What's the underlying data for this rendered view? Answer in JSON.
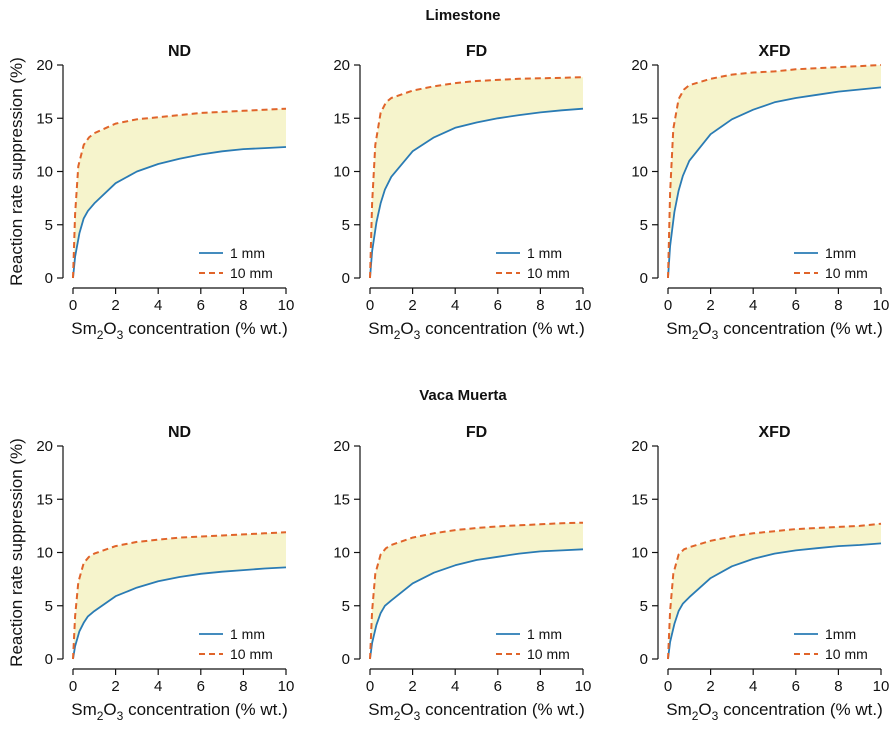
{
  "figure": {
    "group_titles": [
      "Limestone",
      "Vaca Muerta"
    ],
    "ylabel": "Reaction rate suppression (%)",
    "xlabel_main": "Sm",
    "xlabel_sub1": "2",
    "xlabel_mid": "O",
    "xlabel_sub2": "3",
    "xlabel_rest": " concentration (% wt.)"
  },
  "colors": {
    "series_1mm": "#2a7bb4",
    "series_10mm": "#e0642a",
    "fill": "#f6f4cc"
  },
  "chart_data": [
    {
      "type": "line",
      "group": "Limestone",
      "title": "ND",
      "xlim": [
        0,
        10
      ],
      "ylim": [
        0,
        20
      ],
      "xticks": [
        0,
        2,
        4,
        6,
        8,
        10
      ],
      "yticks": [
        0,
        5,
        10,
        15,
        20
      ],
      "legend_placement": "bottom-right",
      "series": [
        {
          "name": "1 mm",
          "style": "solid",
          "x": [
            0,
            0.1,
            0.3,
            0.5,
            0.7,
            1,
            2,
            3,
            4,
            5,
            6,
            7,
            8,
            9,
            10
          ],
          "y": [
            0,
            2,
            4.2,
            5.6,
            6.3,
            7,
            8.9,
            10,
            10.7,
            11.2,
            11.6,
            11.9,
            12.1,
            12.2,
            12.3
          ]
        },
        {
          "name": "10 mm",
          "style": "dashed",
          "x": [
            0,
            0.1,
            0.25,
            0.5,
            0.75,
            1,
            2,
            3,
            4,
            5,
            6,
            7,
            8,
            9,
            10
          ],
          "y": [
            0,
            6,
            10.5,
            12.5,
            13.2,
            13.6,
            14.5,
            14.9,
            15.1,
            15.3,
            15.5,
            15.6,
            15.7,
            15.8,
            15.9
          ]
        }
      ]
    },
    {
      "type": "line",
      "group": "Limestone",
      "title": "FD",
      "xlim": [
        0,
        10
      ],
      "ylim": [
        0,
        20
      ],
      "xticks": [
        0,
        2,
        4,
        6,
        8,
        10
      ],
      "yticks": [
        0,
        5,
        10,
        15,
        20
      ],
      "legend_placement": "bottom-right",
      "series": [
        {
          "name": "1 mm",
          "style": "solid",
          "x": [
            0,
            0.1,
            0.3,
            0.5,
            0.7,
            1,
            2,
            3,
            4,
            5,
            6,
            7,
            8,
            9,
            10
          ],
          "y": [
            0,
            2.5,
            5.2,
            7,
            8.3,
            9.5,
            11.9,
            13.2,
            14.1,
            14.6,
            15,
            15.3,
            15.55,
            15.75,
            15.9
          ]
        },
        {
          "name": "10 mm",
          "style": "dashed",
          "x": [
            0,
            0.1,
            0.25,
            0.5,
            0.75,
            1,
            2,
            3,
            4,
            5,
            6,
            7,
            8,
            9,
            10
          ],
          "y": [
            0,
            7,
            12.5,
            15.5,
            16.5,
            16.9,
            17.6,
            18,
            18.3,
            18.5,
            18.6,
            18.7,
            18.75,
            18.8,
            18.85
          ]
        }
      ]
    },
    {
      "type": "line",
      "group": "Limestone",
      "title": "XFD",
      "xlim": [
        0,
        10
      ],
      "ylim": [
        0,
        20
      ],
      "xticks": [
        0,
        2,
        4,
        6,
        8,
        10
      ],
      "yticks": [
        0,
        5,
        10,
        15,
        20
      ],
      "legend_placement": "bottom-right",
      "series": [
        {
          "name": "1mm",
          "style": "solid",
          "x": [
            0,
            0.1,
            0.3,
            0.5,
            0.7,
            1,
            2,
            3,
            4,
            5,
            6,
            7,
            8,
            9,
            10
          ],
          "y": [
            0,
            3,
            6.2,
            8.2,
            9.6,
            11,
            13.5,
            14.9,
            15.8,
            16.5,
            16.9,
            17.2,
            17.5,
            17.7,
            17.9
          ]
        },
        {
          "name": "10 mm",
          "style": "dashed",
          "x": [
            0,
            0.1,
            0.25,
            0.5,
            0.75,
            1,
            2,
            3,
            4,
            5,
            6,
            7,
            8,
            9,
            10
          ],
          "y": [
            0,
            8,
            14,
            16.8,
            17.7,
            18.1,
            18.7,
            19.1,
            19.3,
            19.4,
            19.6,
            19.7,
            19.8,
            19.9,
            20
          ]
        }
      ]
    },
    {
      "type": "line",
      "group": "Vaca Muerta",
      "title": "ND",
      "xlim": [
        0,
        10
      ],
      "ylim": [
        0,
        20
      ],
      "xticks": [
        0,
        2,
        4,
        6,
        8,
        10
      ],
      "yticks": [
        0,
        5,
        10,
        15,
        20
      ],
      "legend_placement": "bottom-right",
      "series": [
        {
          "name": "1 mm",
          "style": "solid",
          "x": [
            0,
            0.1,
            0.3,
            0.5,
            0.7,
            1,
            2,
            3,
            4,
            5,
            6,
            7,
            8,
            9,
            10
          ],
          "y": [
            0,
            1.2,
            2.6,
            3.4,
            4,
            4.5,
            5.9,
            6.7,
            7.3,
            7.7,
            8,
            8.2,
            8.35,
            8.5,
            8.6
          ]
        },
        {
          "name": "10 mm",
          "style": "dashed",
          "x": [
            0,
            0.1,
            0.25,
            0.5,
            0.75,
            1,
            2,
            3,
            4,
            5,
            6,
            7,
            8,
            9,
            10
          ],
          "y": [
            0,
            4,
            7.2,
            9,
            9.6,
            9.9,
            10.6,
            11,
            11.2,
            11.4,
            11.5,
            11.6,
            11.7,
            11.8,
            11.9
          ]
        }
      ]
    },
    {
      "type": "line",
      "group": "Vaca Muerta",
      "title": "FD",
      "xlim": [
        0,
        10
      ],
      "ylim": [
        0,
        20
      ],
      "xticks": [
        0,
        2,
        4,
        6,
        8,
        10
      ],
      "yticks": [
        0,
        5,
        10,
        15,
        20
      ],
      "legend_placement": "bottom-right",
      "series": [
        {
          "name": "1 mm",
          "style": "solid",
          "x": [
            0,
            0.1,
            0.3,
            0.5,
            0.7,
            1,
            2,
            3,
            4,
            5,
            6,
            7,
            8,
            9,
            10
          ],
          "y": [
            0,
            1.5,
            3.2,
            4.3,
            5,
            5.5,
            7.1,
            8.1,
            8.8,
            9.3,
            9.6,
            9.9,
            10.1,
            10.2,
            10.3
          ]
        },
        {
          "name": "10 mm",
          "style": "dashed",
          "x": [
            0,
            0.1,
            0.25,
            0.5,
            0.75,
            1,
            2,
            3,
            4,
            5,
            6,
            7,
            8,
            9,
            10
          ],
          "y": [
            0,
            4.5,
            8,
            9.8,
            10.4,
            10.7,
            11.4,
            11.8,
            12.1,
            12.3,
            12.45,
            12.55,
            12.65,
            12.75,
            12.8
          ]
        }
      ]
    },
    {
      "type": "line",
      "group": "Vaca Muerta",
      "title": "XFD",
      "xlim": [
        0,
        10
      ],
      "ylim": [
        0,
        20
      ],
      "xticks": [
        0,
        2,
        4,
        6,
        8,
        10
      ],
      "yticks": [
        0,
        5,
        10,
        15,
        20
      ],
      "legend_placement": "bottom-right",
      "series": [
        {
          "name": "1mm",
          "style": "solid",
          "x": [
            0,
            0.1,
            0.3,
            0.5,
            0.7,
            1,
            2,
            3,
            4,
            5,
            6,
            7,
            8,
            9,
            10
          ],
          "y": [
            0,
            1.6,
            3.3,
            4.5,
            5.2,
            5.8,
            7.6,
            8.7,
            9.4,
            9.9,
            10.2,
            10.4,
            10.6,
            10.7,
            10.85
          ]
        },
        {
          "name": "10 mm",
          "style": "dashed",
          "x": [
            0,
            0.1,
            0.25,
            0.5,
            0.75,
            1,
            2,
            3,
            4,
            5,
            6,
            7,
            8,
            9,
            10
          ],
          "y": [
            0,
            4.5,
            8,
            9.8,
            10.3,
            10.5,
            11.1,
            11.5,
            11.8,
            12,
            12.2,
            12.3,
            12.4,
            12.5,
            12.7
          ]
        }
      ]
    }
  ]
}
